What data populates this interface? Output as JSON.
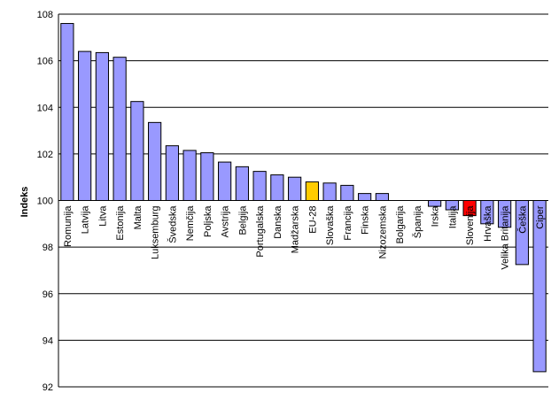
{
  "chart_data": {
    "type": "bar",
    "title": "",
    "xlabel": "",
    "ylabel": "Indeks",
    "ylim": [
      92,
      108
    ],
    "yticks": [
      92,
      94,
      96,
      98,
      100,
      102,
      104,
      106,
      108
    ],
    "baseline": 100,
    "grid": true,
    "legend": "none",
    "categories": [
      "Romunija",
      "Latvija",
      "Litva",
      "Estonija",
      "Malta",
      "Luksemburg",
      "Švedska",
      "Nemčija",
      "Poljska",
      "Avstrija",
      "Belgija",
      "Portugalska",
      "Danska",
      "Madžarska",
      "EU-28",
      "Slovaška",
      "Francija",
      "Finska",
      "Nizozemska",
      "Bolgarija",
      "Španija",
      "Irska",
      "Italija",
      "Slovenija",
      "Hrvaška",
      "Velika Britanija",
      "Češka",
      "Ciper"
    ],
    "values": [
      107.6,
      106.4,
      106.35,
      106.15,
      104.25,
      103.35,
      102.35,
      102.15,
      102.05,
      101.65,
      101.45,
      101.25,
      101.1,
      101.0,
      100.8,
      100.75,
      100.65,
      100.3,
      100.3,
      100.0,
      100.0,
      99.75,
      99.6,
      99.35,
      99.0,
      98.85,
      97.25,
      92.65
    ],
    "colors": {
      "default": "#9999ff",
      "EU-28": "#ffcc00",
      "Slovenija": "#ff0000",
      "border": "#000000",
      "grid": "#000000"
    }
  }
}
